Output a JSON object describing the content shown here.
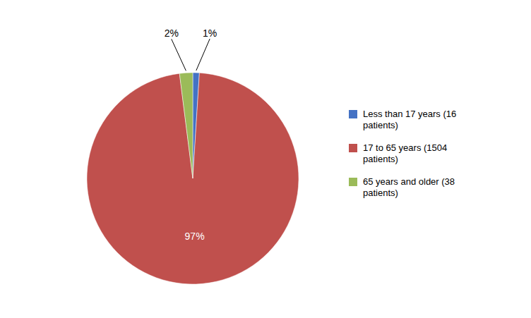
{
  "chart_data": {
    "type": "pie",
    "categories": [
      "Less than 17 years (16\npatients)",
      "17 to 65 years (1504\npatients)",
      "65 years and older (38\npatients)"
    ],
    "values": [
      1,
      97,
      2
    ],
    "value_labels": [
      "1%",
      "97%",
      "2%"
    ],
    "colors": [
      "#4472c4",
      "#c0504d",
      "#9bbb59"
    ],
    "data_labels": true,
    "legend": "right"
  }
}
